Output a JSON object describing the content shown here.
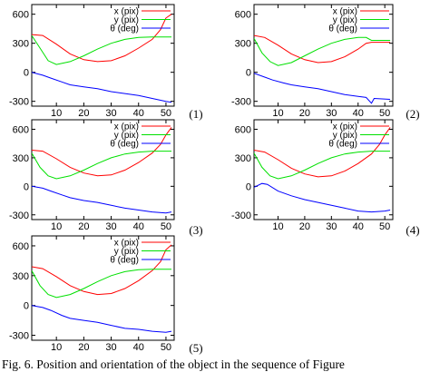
{
  "caption": "Fig. 6.    Position and orientation of the object in the sequence of Figure",
  "colors": {
    "x": "#ff0000",
    "y": "#00e000",
    "theta": "#0000ff"
  },
  "chart_data": [
    {
      "type": "line",
      "panel_label": "(1)",
      "xlim": [
        1,
        53
      ],
      "ylim": [
        -350,
        700
      ],
      "xticks": [
        10,
        20,
        30,
        40,
        50
      ],
      "yticks": [
        -300,
        0,
        300,
        600
      ],
      "legend_position": "top-right",
      "series": [
        {
          "name": "x (pix)",
          "points": [
            [
              1,
              390
            ],
            [
              5,
              380
            ],
            [
              10,
              290
            ],
            [
              15,
              190
            ],
            [
              20,
              130
            ],
            [
              25,
              110
            ],
            [
              30,
              120
            ],
            [
              35,
              170
            ],
            [
              40,
              250
            ],
            [
              45,
              340
            ],
            [
              48,
              440
            ],
            [
              50,
              560
            ],
            [
              52,
              600
            ]
          ]
        },
        {
          "name": "y (pix)",
          "points": [
            [
              1,
              380
            ],
            [
              4,
              250
            ],
            [
              7,
              120
            ],
            [
              10,
              80
            ],
            [
              15,
              110
            ],
            [
              20,
              170
            ],
            [
              25,
              240
            ],
            [
              30,
              300
            ],
            [
              35,
              340
            ],
            [
              40,
              360
            ],
            [
              45,
              365
            ],
            [
              52,
              365
            ]
          ]
        },
        {
          "name": "θ (deg)",
          "points": [
            [
              1,
              0
            ],
            [
              5,
              -30
            ],
            [
              8,
              -60
            ],
            [
              12,
              -100
            ],
            [
              15,
              -130
            ],
            [
              20,
              -150
            ],
            [
              25,
              -170
            ],
            [
              30,
              -200
            ],
            [
              35,
              -220
            ],
            [
              40,
              -240
            ],
            [
              45,
              -270
            ],
            [
              50,
              -300
            ],
            [
              52,
              -310
            ]
          ]
        }
      ]
    },
    {
      "type": "line",
      "panel_label": "(2)",
      "xlim": [
        1,
        53
      ],
      "ylim": [
        -350,
        700
      ],
      "xticks": [
        10,
        20,
        30,
        40,
        50
      ],
      "yticks": [
        -300,
        0,
        300,
        600
      ],
      "legend_position": "top-right",
      "series": [
        {
          "name": "x (pix)",
          "points": [
            [
              1,
              380
            ],
            [
              5,
              360
            ],
            [
              10,
              280
            ],
            [
              15,
              190
            ],
            [
              20,
              130
            ],
            [
              25,
              100
            ],
            [
              30,
              110
            ],
            [
              35,
              160
            ],
            [
              40,
              240
            ],
            [
              43,
              300
            ],
            [
              45,
              310
            ],
            [
              52,
              310
            ]
          ]
        },
        {
          "name": "y (pix)",
          "points": [
            [
              1,
              350
            ],
            [
              4,
              200
            ],
            [
              7,
              110
            ],
            [
              10,
              70
            ],
            [
              15,
              100
            ],
            [
              20,
              170
            ],
            [
              25,
              240
            ],
            [
              30,
              300
            ],
            [
              35,
              340
            ],
            [
              40,
              360
            ],
            [
              43,
              360
            ],
            [
              45,
              330
            ],
            [
              52,
              330
            ]
          ]
        },
        {
          "name": "θ (deg)",
          "points": [
            [
              1,
              -10
            ],
            [
              5,
              -50
            ],
            [
              8,
              -80
            ],
            [
              12,
              -110
            ],
            [
              15,
              -130
            ],
            [
              20,
              -150
            ],
            [
              25,
              -170
            ],
            [
              30,
              -200
            ],
            [
              35,
              -230
            ],
            [
              40,
              -250
            ],
            [
              43,
              -260
            ],
            [
              45,
              -320
            ],
            [
              46,
              -270
            ],
            [
              52,
              -280
            ]
          ]
        }
      ]
    },
    {
      "type": "line",
      "panel_label": "(3)",
      "xlim": [
        1,
        53
      ],
      "ylim": [
        -350,
        700
      ],
      "xticks": [
        10,
        20,
        30,
        40,
        50
      ],
      "yticks": [
        -300,
        0,
        300,
        600
      ],
      "legend_position": "top-right",
      "series": [
        {
          "name": "x (pix)",
          "points": [
            [
              1,
              380
            ],
            [
              5,
              370
            ],
            [
              10,
              290
            ],
            [
              15,
              200
            ],
            [
              20,
              140
            ],
            [
              25,
              110
            ],
            [
              30,
              120
            ],
            [
              35,
              170
            ],
            [
              40,
              250
            ],
            [
              45,
              350
            ],
            [
              48,
              440
            ],
            [
              50,
              540
            ],
            [
              52,
              620
            ]
          ]
        },
        {
          "name": "y (pix)",
          "points": [
            [
              1,
              350
            ],
            [
              4,
              200
            ],
            [
              7,
              110
            ],
            [
              10,
              80
            ],
            [
              15,
              110
            ],
            [
              20,
              170
            ],
            [
              25,
              240
            ],
            [
              30,
              300
            ],
            [
              35,
              340
            ],
            [
              40,
              360
            ],
            [
              45,
              370
            ],
            [
              52,
              370
            ]
          ]
        },
        {
          "name": "θ (deg)",
          "points": [
            [
              1,
              0
            ],
            [
              5,
              -20
            ],
            [
              8,
              -50
            ],
            [
              12,
              -90
            ],
            [
              15,
              -120
            ],
            [
              20,
              -150
            ],
            [
              25,
              -170
            ],
            [
              30,
              -200
            ],
            [
              35,
              -230
            ],
            [
              40,
              -250
            ],
            [
              45,
              -270
            ],
            [
              50,
              -280
            ],
            [
              52,
              -270
            ]
          ]
        }
      ]
    },
    {
      "type": "line",
      "panel_label": "(4)",
      "xlim": [
        1,
        53
      ],
      "ylim": [
        -350,
        700
      ],
      "xticks": [
        10,
        20,
        30,
        40,
        50
      ],
      "yticks": [
        -300,
        0,
        300,
        600
      ],
      "legend_position": "top-right",
      "series": [
        {
          "name": "x (pix)",
          "points": [
            [
              1,
              380
            ],
            [
              5,
              360
            ],
            [
              10,
              280
            ],
            [
              15,
              190
            ],
            [
              20,
              130
            ],
            [
              25,
              100
            ],
            [
              30,
              110
            ],
            [
              35,
              160
            ],
            [
              40,
              240
            ],
            [
              45,
              340
            ],
            [
              48,
              440
            ],
            [
              50,
              540
            ],
            [
              52,
              620
            ]
          ]
        },
        {
          "name": "y (pix)",
          "points": [
            [
              1,
              350
            ],
            [
              4,
              200
            ],
            [
              7,
              110
            ],
            [
              10,
              80
            ],
            [
              15,
              110
            ],
            [
              20,
              170
            ],
            [
              25,
              240
            ],
            [
              30,
              300
            ],
            [
              35,
              340
            ],
            [
              40,
              360
            ],
            [
              45,
              370
            ],
            [
              52,
              370
            ]
          ]
        },
        {
          "name": "θ (deg)",
          "points": [
            [
              1,
              -10
            ],
            [
              4,
              30
            ],
            [
              6,
              20
            ],
            [
              10,
              -50
            ],
            [
              15,
              -100
            ],
            [
              20,
              -140
            ],
            [
              25,
              -170
            ],
            [
              30,
              -200
            ],
            [
              35,
              -230
            ],
            [
              40,
              -260
            ],
            [
              45,
              -270
            ],
            [
              50,
              -260
            ],
            [
              52,
              -250
            ]
          ]
        }
      ]
    },
    {
      "type": "line",
      "panel_label": "(5)",
      "xlim": [
        1,
        53
      ],
      "ylim": [
        -350,
        700
      ],
      "xticks": [
        10,
        20,
        30,
        40,
        50
      ],
      "yticks": [
        -300,
        0,
        300,
        600
      ],
      "legend_position": "top-right",
      "series": [
        {
          "name": "x (pix)",
          "points": [
            [
              1,
              390
            ],
            [
              5,
              370
            ],
            [
              10,
              290
            ],
            [
              15,
              200
            ],
            [
              20,
              140
            ],
            [
              25,
              110
            ],
            [
              30,
              120
            ],
            [
              35,
              170
            ],
            [
              40,
              250
            ],
            [
              45,
              350
            ],
            [
              48,
              440
            ],
            [
              50,
              560
            ],
            [
              52,
              610
            ]
          ]
        },
        {
          "name": "y (pix)",
          "points": [
            [
              1,
              350
            ],
            [
              4,
              200
            ],
            [
              7,
              110
            ],
            [
              10,
              80
            ],
            [
              15,
              110
            ],
            [
              20,
              170
            ],
            [
              25,
              240
            ],
            [
              30,
              300
            ],
            [
              35,
              340
            ],
            [
              40,
              360
            ],
            [
              45,
              365
            ],
            [
              52,
              365
            ]
          ]
        },
        {
          "name": "θ (deg)",
          "points": [
            [
              1,
              0
            ],
            [
              5,
              -20
            ],
            [
              8,
              -50
            ],
            [
              12,
              -100
            ],
            [
              15,
              -130
            ],
            [
              20,
              -150
            ],
            [
              25,
              -170
            ],
            [
              30,
              -200
            ],
            [
              35,
              -230
            ],
            [
              40,
              -240
            ],
            [
              45,
              -260
            ],
            [
              50,
              -270
            ],
            [
              52,
              -260
            ]
          ]
        }
      ]
    }
  ]
}
